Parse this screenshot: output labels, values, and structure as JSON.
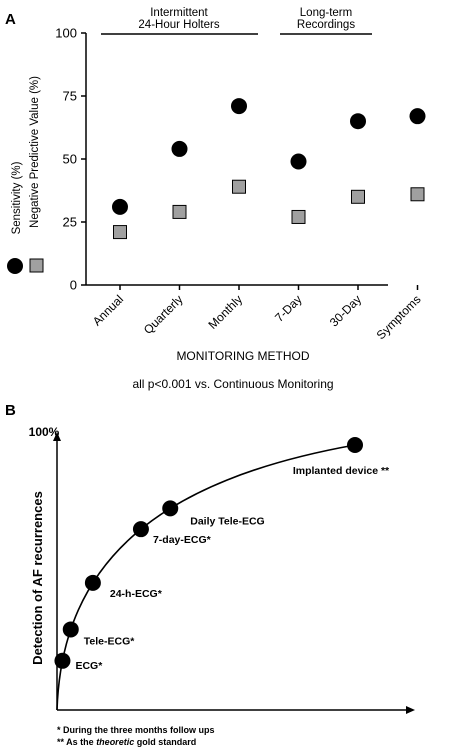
{
  "panels": {
    "a_label": "A",
    "b_label": "B"
  },
  "chart_data": [
    {
      "type": "scatter",
      "panel": "A",
      "categories": [
        "Annual",
        "Quarterly",
        "Monthly",
        "7-Day",
        "30-Day",
        "Symptoms"
      ],
      "series": [
        {
          "name": "Sensitivity (%)",
          "marker": "circle",
          "color": "#000000",
          "values": [
            31,
            54,
            71,
            49,
            65,
            67
          ]
        },
        {
          "name": "Negative Predictive Value (%)",
          "marker": "square",
          "color": "#a0a0a0",
          "values": [
            21,
            29,
            39,
            27,
            35,
            36
          ]
        }
      ],
      "ylim": [
        0,
        100
      ],
      "yticks": [
        "0",
        "25",
        "50",
        "75",
        "100"
      ],
      "xlabel": "MONITORING METHOD",
      "group_labels": [
        {
          "lines": [
            "Intermittent",
            "24-Hour Holters"
          ],
          "categories": [
            "Annual",
            "Monthly"
          ]
        },
        {
          "lines": [
            "Long-term",
            "Recordings"
          ],
          "categories": [
            "7-Day",
            "30-Day"
          ]
        }
      ],
      "note": "all p<0.001 vs. Continuous Monitoring"
    },
    {
      "type": "line",
      "panel": "B",
      "ylabel": "Detection of AF recurrences",
      "y_max_label": "100%",
      "points": [
        {
          "label": "ECG*"
        },
        {
          "label": "Tele-ECG*"
        },
        {
          "label": "24-h-ECG*"
        },
        {
          "label": "7-day-ECG*"
        },
        {
          "label": "Daily Tele-ECG"
        },
        {
          "label": "Implanted device **"
        }
      ],
      "footnotes": [
        {
          "text": "* During the three months follow ups"
        },
        {
          "prefix": "** As the ",
          "emph": "theoretic",
          "suffix": " gold standard"
        }
      ]
    }
  ]
}
